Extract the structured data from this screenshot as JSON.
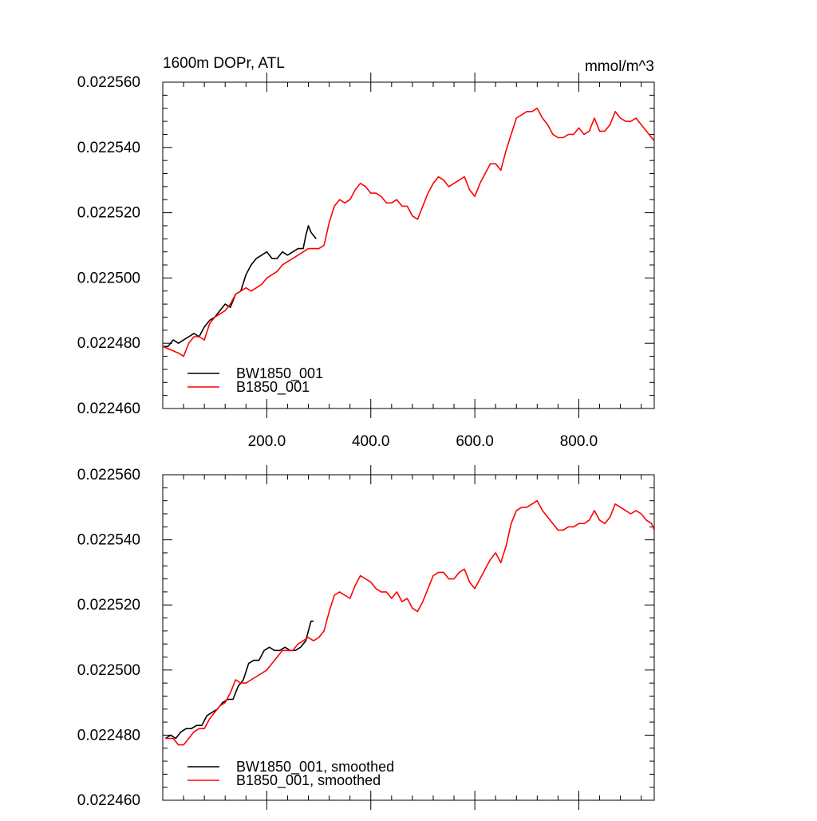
{
  "chart_data": [
    {
      "type": "line",
      "title_left": "1600m DOPr, ATL",
      "title_right": "mmol/m^3",
      "xlabel": "",
      "ylabel": "",
      "xlim": [
        0,
        945
      ],
      "ylim": [
        0.02246,
        0.02256
      ],
      "yticks": [
        "0.022460",
        "0.022480",
        "0.022500",
        "0.022520",
        "0.022540",
        "0.022560"
      ],
      "xticks": [
        "200.0",
        "400.0",
        "600.0",
        "800.0"
      ],
      "legend_position": "bottom-left",
      "series": [
        {
          "name": "BW1850_001",
          "color": "#000000",
          "points": [
            [
              0,
              0.022479
            ],
            [
              10,
              0.022479
            ],
            [
              20,
              0.022481
            ],
            [
              30,
              0.02248
            ],
            [
              40,
              0.022481
            ],
            [
              50,
              0.022482
            ],
            [
              60,
              0.022483
            ],
            [
              70,
              0.022482
            ],
            [
              80,
              0.022485
            ],
            [
              90,
              0.022487
            ],
            [
              100,
              0.022488
            ],
            [
              110,
              0.02249
            ],
            [
              120,
              0.022492
            ],
            [
              130,
              0.022491
            ],
            [
              140,
              0.022495
            ],
            [
              150,
              0.022496
            ],
            [
              160,
              0.022501
            ],
            [
              170,
              0.022504
            ],
            [
              180,
              0.022506
            ],
            [
              190,
              0.022507
            ],
            [
              200,
              0.022508
            ],
            [
              210,
              0.022506
            ],
            [
              220,
              0.022506
            ],
            [
              230,
              0.022508
            ],
            [
              240,
              0.022507
            ],
            [
              250,
              0.022508
            ],
            [
              260,
              0.022509
            ],
            [
              270,
              0.022509
            ],
            [
              275,
              0.022513
            ],
            [
              280,
              0.022516
            ],
            [
              285,
              0.022514
            ],
            [
              290,
              0.022513
            ],
            [
              295,
              0.022512
            ]
          ]
        },
        {
          "name": "B1850_001",
          "color": "#ff0000",
          "points": [
            [
              0,
              0.022479
            ],
            [
              15,
              0.022478
            ],
            [
              30,
              0.022477
            ],
            [
              40,
              0.022476
            ],
            [
              50,
              0.02248
            ],
            [
              60,
              0.022482
            ],
            [
              70,
              0.022482
            ],
            [
              80,
              0.022481
            ],
            [
              90,
              0.022486
            ],
            [
              100,
              0.022488
            ],
            [
              110,
              0.022489
            ],
            [
              120,
              0.02249
            ],
            [
              130,
              0.022492
            ],
            [
              140,
              0.022495
            ],
            [
              150,
              0.022496
            ],
            [
              160,
              0.022497
            ],
            [
              170,
              0.022496
            ],
            [
              180,
              0.022497
            ],
            [
              190,
              0.022498
            ],
            [
              200,
              0.0225
            ],
            [
              210,
              0.022501
            ],
            [
              220,
              0.022502
            ],
            [
              230,
              0.022504
            ],
            [
              240,
              0.022505
            ],
            [
              250,
              0.022506
            ],
            [
              260,
              0.022507
            ],
            [
              270,
              0.022508
            ],
            [
              280,
              0.022509
            ],
            [
              290,
              0.022509
            ],
            [
              300,
              0.022509
            ],
            [
              310,
              0.02251
            ],
            [
              320,
              0.022517
            ],
            [
              330,
              0.022522
            ],
            [
              340,
              0.022524
            ],
            [
              350,
              0.022523
            ],
            [
              360,
              0.022524
            ],
            [
              370,
              0.022527
            ],
            [
              380,
              0.022529
            ],
            [
              390,
              0.022528
            ],
            [
              400,
              0.022526
            ],
            [
              410,
              0.022526
            ],
            [
              420,
              0.022525
            ],
            [
              430,
              0.022523
            ],
            [
              440,
              0.022523
            ],
            [
              450,
              0.022524
            ],
            [
              460,
              0.022522
            ],
            [
              470,
              0.022522
            ],
            [
              480,
              0.022519
            ],
            [
              490,
              0.022518
            ],
            [
              500,
              0.022522
            ],
            [
              510,
              0.022526
            ],
            [
              520,
              0.022529
            ],
            [
              530,
              0.022531
            ],
            [
              540,
              0.02253
            ],
            [
              550,
              0.022528
            ],
            [
              560,
              0.022529
            ],
            [
              570,
              0.02253
            ],
            [
              580,
              0.022531
            ],
            [
              590,
              0.022527
            ],
            [
              600,
              0.022525
            ],
            [
              610,
              0.022529
            ],
            [
              620,
              0.022532
            ],
            [
              630,
              0.022535
            ],
            [
              640,
              0.022535
            ],
            [
              650,
              0.022533
            ],
            [
              660,
              0.022539
            ],
            [
              670,
              0.022544
            ],
            [
              680,
              0.022549
            ],
            [
              690,
              0.02255
            ],
            [
              700,
              0.022551
            ],
            [
              710,
              0.022551
            ],
            [
              720,
              0.022552
            ],
            [
              730,
              0.022549
            ],
            [
              740,
              0.022547
            ],
            [
              750,
              0.022544
            ],
            [
              760,
              0.022543
            ],
            [
              770,
              0.022543
            ],
            [
              780,
              0.022544
            ],
            [
              790,
              0.022544
            ],
            [
              800,
              0.022546
            ],
            [
              810,
              0.022544
            ],
            [
              820,
              0.022545
            ],
            [
              830,
              0.022549
            ],
            [
              840,
              0.022545
            ],
            [
              850,
              0.022545
            ],
            [
              860,
              0.022547
            ],
            [
              870,
              0.022551
            ],
            [
              880,
              0.022549
            ],
            [
              890,
              0.022548
            ],
            [
              900,
              0.022548
            ],
            [
              910,
              0.022549
            ],
            [
              920,
              0.022547
            ],
            [
              930,
              0.022545
            ],
            [
              940,
              0.022543
            ],
            [
              945,
              0.022542
            ]
          ]
        }
      ]
    },
    {
      "type": "line",
      "xlabel": "",
      "ylabel": "",
      "xlim": [
        0,
        945
      ],
      "ylim": [
        0.02246,
        0.02256
      ],
      "yticks": [
        "0.022460",
        "0.022480",
        "0.022500",
        "0.022520",
        "0.022540",
        "0.022560"
      ],
      "legend_position": "bottom-left",
      "series": [
        {
          "name": "BW1850_001, smoothed",
          "color": "#000000",
          "points": [
            [
              5,
              0.022479
            ],
            [
              15,
              0.02248
            ],
            [
              25,
              0.022479
            ],
            [
              35,
              0.022481
            ],
            [
              45,
              0.022482
            ],
            [
              55,
              0.022482
            ],
            [
              65,
              0.022483
            ],
            [
              75,
              0.022483
            ],
            [
              85,
              0.022486
            ],
            [
              95,
              0.022487
            ],
            [
              105,
              0.022488
            ],
            [
              115,
              0.02249
            ],
            [
              125,
              0.022491
            ],
            [
              135,
              0.022491
            ],
            [
              145,
              0.022495
            ],
            [
              155,
              0.022497
            ],
            [
              165,
              0.022502
            ],
            [
              175,
              0.022503
            ],
            [
              185,
              0.022503
            ],
            [
              195,
              0.022506
            ],
            [
              205,
              0.022507
            ],
            [
              215,
              0.022506
            ],
            [
              225,
              0.022506
            ],
            [
              235,
              0.022507
            ],
            [
              245,
              0.022506
            ],
            [
              255,
              0.022506
            ],
            [
              265,
              0.022507
            ],
            [
              275,
              0.022509
            ],
            [
              280,
              0.022512
            ],
            [
              285,
              0.022515
            ],
            [
              290,
              0.022515
            ]
          ]
        },
        {
          "name": "B1850_001, smoothed",
          "color": "#ff0000",
          "points": [
            [
              5,
              0.022479
            ],
            [
              20,
              0.022479
            ],
            [
              30,
              0.022477
            ],
            [
              40,
              0.022477
            ],
            [
              50,
              0.022479
            ],
            [
              60,
              0.022481
            ],
            [
              70,
              0.022482
            ],
            [
              80,
              0.022482
            ],
            [
              90,
              0.022485
            ],
            [
              100,
              0.022487
            ],
            [
              110,
              0.022489
            ],
            [
              120,
              0.02249
            ],
            [
              130,
              0.022493
            ],
            [
              140,
              0.022497
            ],
            [
              150,
              0.022496
            ],
            [
              160,
              0.022496
            ],
            [
              170,
              0.022497
            ],
            [
              180,
              0.022498
            ],
            [
              190,
              0.022499
            ],
            [
              200,
              0.0225
            ],
            [
              210,
              0.022502
            ],
            [
              220,
              0.022504
            ],
            [
              230,
              0.022506
            ],
            [
              240,
              0.022506
            ],
            [
              250,
              0.022506
            ],
            [
              260,
              0.022508
            ],
            [
              270,
              0.022509
            ],
            [
              280,
              0.02251
            ],
            [
              290,
              0.022509
            ],
            [
              300,
              0.02251
            ],
            [
              310,
              0.022512
            ],
            [
              320,
              0.022518
            ],
            [
              330,
              0.022523
            ],
            [
              340,
              0.022524
            ],
            [
              350,
              0.022523
            ],
            [
              360,
              0.022522
            ],
            [
              370,
              0.022526
            ],
            [
              380,
              0.022529
            ],
            [
              390,
              0.022528
            ],
            [
              400,
              0.022527
            ],
            [
              410,
              0.022525
            ],
            [
              420,
              0.022524
            ],
            [
              430,
              0.022524
            ],
            [
              440,
              0.022522
            ],
            [
              450,
              0.022524
            ],
            [
              460,
              0.022521
            ],
            [
              470,
              0.022522
            ],
            [
              480,
              0.022519
            ],
            [
              490,
              0.022518
            ],
            [
              500,
              0.022521
            ],
            [
              510,
              0.022525
            ],
            [
              520,
              0.022529
            ],
            [
              530,
              0.02253
            ],
            [
              540,
              0.02253
            ],
            [
              550,
              0.022528
            ],
            [
              560,
              0.022528
            ],
            [
              570,
              0.02253
            ],
            [
              580,
              0.022531
            ],
            [
              590,
              0.022527
            ],
            [
              600,
              0.022525
            ],
            [
              610,
              0.022528
            ],
            [
              620,
              0.022531
            ],
            [
              630,
              0.022534
            ],
            [
              640,
              0.022536
            ],
            [
              650,
              0.022533
            ],
            [
              660,
              0.022538
            ],
            [
              670,
              0.022545
            ],
            [
              680,
              0.022549
            ],
            [
              690,
              0.02255
            ],
            [
              700,
              0.02255
            ],
            [
              710,
              0.022551
            ],
            [
              720,
              0.022552
            ],
            [
              730,
              0.022549
            ],
            [
              740,
              0.022547
            ],
            [
              750,
              0.022545
            ],
            [
              760,
              0.022543
            ],
            [
              770,
              0.022543
            ],
            [
              780,
              0.022544
            ],
            [
              790,
              0.022544
            ],
            [
              800,
              0.022545
            ],
            [
              810,
              0.022545
            ],
            [
              820,
              0.022546
            ],
            [
              830,
              0.022549
            ],
            [
              840,
              0.022546
            ],
            [
              850,
              0.022545
            ],
            [
              860,
              0.022547
            ],
            [
              870,
              0.022551
            ],
            [
              880,
              0.02255
            ],
            [
              890,
              0.022549
            ],
            [
              900,
              0.022548
            ],
            [
              910,
              0.022549
            ],
            [
              920,
              0.022548
            ],
            [
              930,
              0.022546
            ],
            [
              940,
              0.022545
            ],
            [
              945,
              0.022543
            ]
          ]
        }
      ]
    }
  ]
}
